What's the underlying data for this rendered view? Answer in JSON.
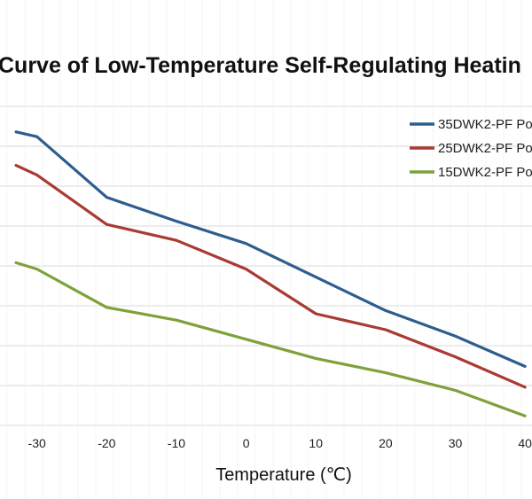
{
  "chart_data": {
    "type": "line",
    "title": "Curve of Low-Temperature Self-Regulating Heatin",
    "xlabel": "Temperature (℃)",
    "ylabel": "",
    "x": [
      -30,
      -20,
      -10,
      0,
      10,
      20,
      30,
      40
    ],
    "x_tick_labels": [
      "-30",
      "-20",
      "-10",
      "0",
      "10",
      "20",
      "30",
      "40"
    ],
    "xlim": [
      -35.3,
      41.0
    ],
    "ylim": [
      0,
      100
    ],
    "grid": true,
    "legend_position": "top-right",
    "series": [
      {
        "name": "35DWK2-PF Po",
        "color": "#2e5e8e",
        "x": [
          -33,
          -30,
          -20,
          -10,
          0,
          10,
          20,
          30,
          40
        ],
        "values": [
          92,
          90.5,
          71.5,
          64,
          57,
          46.5,
          36,
          28,
          18.5
        ]
      },
      {
        "name": "25DWK2-PF Po",
        "color": "#a93a34",
        "x": [
          -33,
          -30,
          -20,
          -10,
          0,
          10,
          20,
          30,
          40
        ],
        "values": [
          81.5,
          78.5,
          63,
          58,
          49,
          35,
          30,
          21.5,
          12
        ]
      },
      {
        "name": "15DWK2-PF Po",
        "color": "#7da23a",
        "x": [
          -33,
          -30,
          -20,
          -10,
          0,
          10,
          20,
          30,
          40
        ],
        "values": [
          51,
          49,
          37,
          33,
          27,
          21,
          16.5,
          11,
          3
        ]
      }
    ]
  }
}
